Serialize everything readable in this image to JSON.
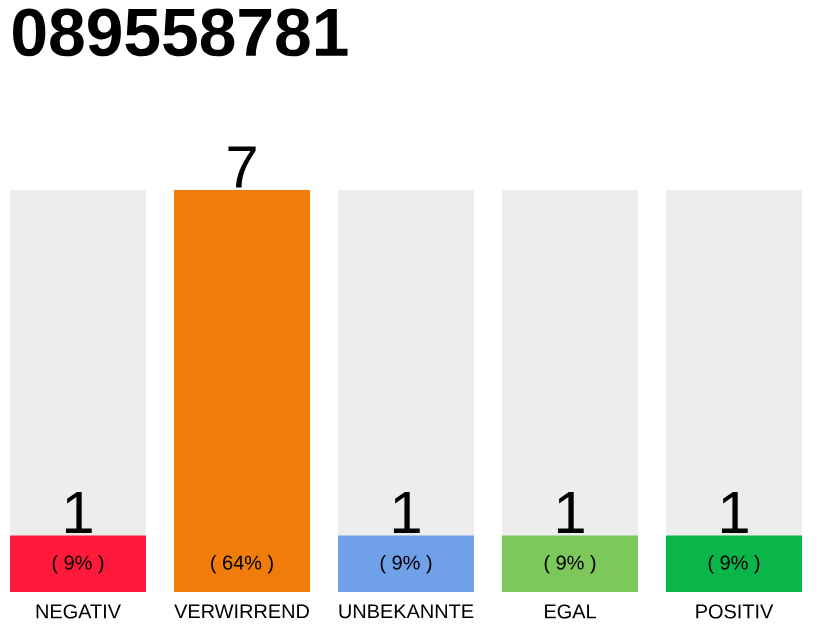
{
  "chart_data": {
    "type": "bar",
    "title": "089558781",
    "categories": [
      "NEGATIV",
      "VERWIRREND",
      "UNBEKANNTE",
      "EGAL",
      "POSITIV"
    ],
    "values": [
      9,
      64,
      9,
      9,
      9
    ],
    "colors": [
      "#ff1a3c",
      "#f07d0a",
      "#6fa0e8",
      "#7dc85a",
      "#0ab54a"
    ],
    "value_labels": [
      "( 9% )",
      "( 64% )",
      "( 9% )",
      "( 9% )",
      "( 9% )"
    ],
    "annotations": [
      {
        "text": "1",
        "x": "NEGATIV",
        "y": 9
      },
      {
        "text": "7",
        "x": "VERWIRREND",
        "y": 64
      },
      {
        "text": "1",
        "x": "UNBEKANNTE",
        "y": 9
      },
      {
        "text": "1",
        "x": "EGAL",
        "y": 9
      },
      {
        "text": "1",
        "x": "POSITIV",
        "y": 9
      }
    ]
  }
}
